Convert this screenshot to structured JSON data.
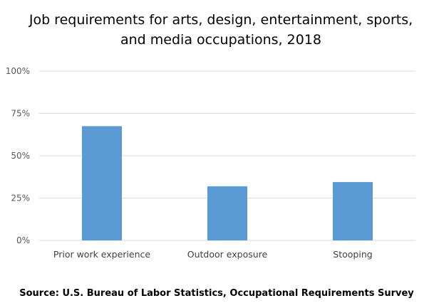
{
  "chart_data": {
    "type": "bar",
    "title_lines": [
      "Job requirements for arts, design, entertainment, sports,",
      "and media occupations, 2018"
    ],
    "categories": [
      "Prior work experience",
      "Outdoor exposure",
      "Stooping"
    ],
    "values": [
      67.5,
      32,
      34.5
    ],
    "value_unit": "percent",
    "ylim": [
      0,
      100
    ],
    "y_ticks": [
      "0%",
      "25%",
      "50%",
      "75%",
      "100%"
    ],
    "y_tick_values": [
      0,
      25,
      50,
      75,
      100
    ],
    "xlabel": "",
    "ylabel": "",
    "grid": true,
    "legend": "none",
    "bar_color": "#5b9bd5",
    "source": "Source: U.S. Bureau of Labor Statistics, Occupational Requirements Survey"
  }
}
